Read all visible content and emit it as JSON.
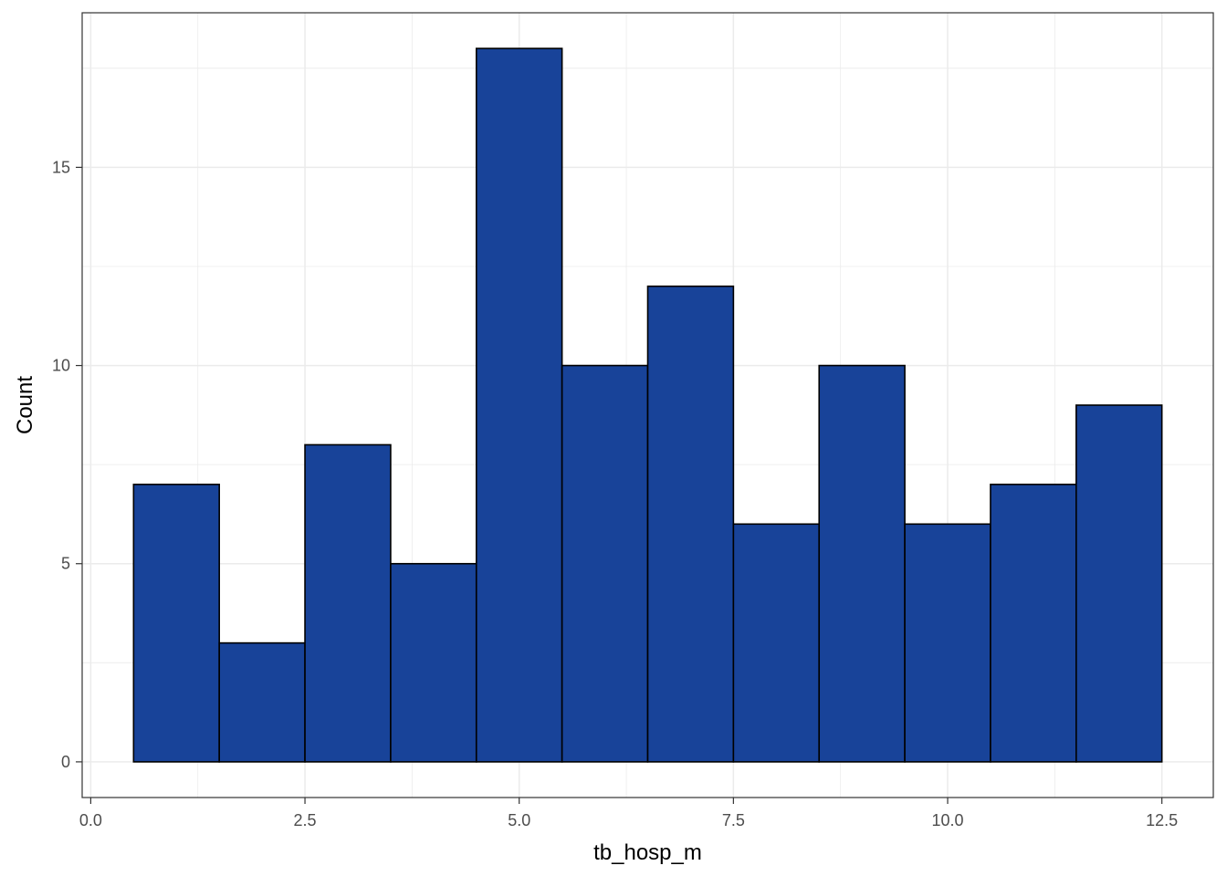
{
  "chart_data": {
    "type": "bar",
    "subtype": "histogram",
    "xlabel": "tb_hosp_m",
    "ylabel": "Count",
    "xlim": [
      -0.1,
      13.1
    ],
    "ylim": [
      -0.9,
      18.9
    ],
    "x_ticks": [
      0.0,
      2.5,
      5.0,
      7.5,
      10.0,
      12.5
    ],
    "x_tick_labels": [
      "0.0",
      "2.5",
      "5.0",
      "7.5",
      "10.0",
      "12.5"
    ],
    "y_ticks": [
      0,
      5,
      10,
      15
    ],
    "y_tick_labels": [
      "0",
      "5",
      "10",
      "15"
    ],
    "bin_width": 1,
    "bins": [
      {
        "x": 1,
        "count": 7
      },
      {
        "x": 2,
        "count": 3
      },
      {
        "x": 3,
        "count": 8
      },
      {
        "x": 4,
        "count": 5
      },
      {
        "x": 5,
        "count": 18
      },
      {
        "x": 6,
        "count": 10
      },
      {
        "x": 7,
        "count": 12
      },
      {
        "x": 8,
        "count": 6
      },
      {
        "x": 9,
        "count": 10
      },
      {
        "x": 10,
        "count": 6
      },
      {
        "x": 11,
        "count": 7
      },
      {
        "x": 12,
        "count": 9
      }
    ],
    "grid": true,
    "legend": "none",
    "colors": {
      "bar_fill": "#184399",
      "bar_stroke": "#000000",
      "grid": "#ebebeb",
      "panel_border": "#333333"
    }
  }
}
